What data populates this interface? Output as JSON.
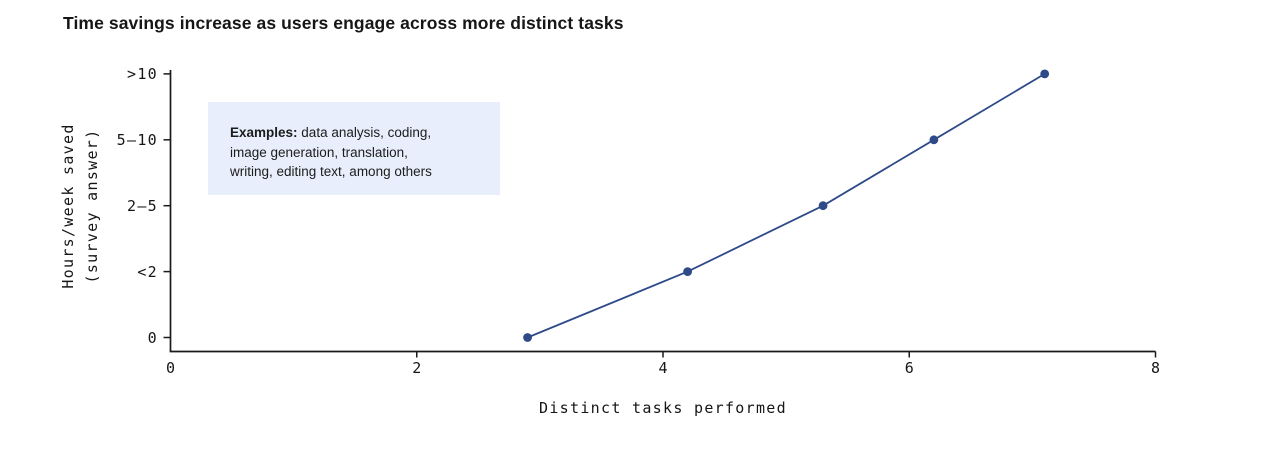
{
  "chart_data": {
    "type": "line",
    "title": "Time savings increase as users engage across more distinct tasks",
    "xlabel": "Distinct tasks performed",
    "ylabel_lines": [
      "Hours/week saved",
      "(survey answer)"
    ],
    "xlim": [
      0,
      8
    ],
    "x_ticks": [
      0,
      2,
      4,
      6,
      8
    ],
    "y_tick_labels": [
      "0",
      "<2",
      "2–5",
      "5–10",
      ">10"
    ],
    "grid": false,
    "points": [
      {
        "x": 2.9,
        "y_level": 0,
        "y_label": "0"
      },
      {
        "x": 4.2,
        "y_level": 1,
        "y_label": "<2"
      },
      {
        "x": 5.3,
        "y_level": 2,
        "y_label": "2–5"
      },
      {
        "x": 6.2,
        "y_level": 3,
        "y_label": "5–10"
      },
      {
        "x": 7.1,
        "y_level": 4,
        "y_label": ">10"
      }
    ],
    "colors": {
      "line": "#2e4a89",
      "marker": "#2e4a89",
      "axis": "#1a1a1a",
      "annotation_bg": "#e8eefb"
    },
    "annotation": {
      "lines": [
        {
          "bold": "Examples:",
          "rest": " data analysis, coding,"
        },
        {
          "bold": "",
          "rest": "image generation, translation,"
        },
        {
          "bold": "",
          "rest": "writing, editing text, among others"
        }
      ]
    }
  }
}
